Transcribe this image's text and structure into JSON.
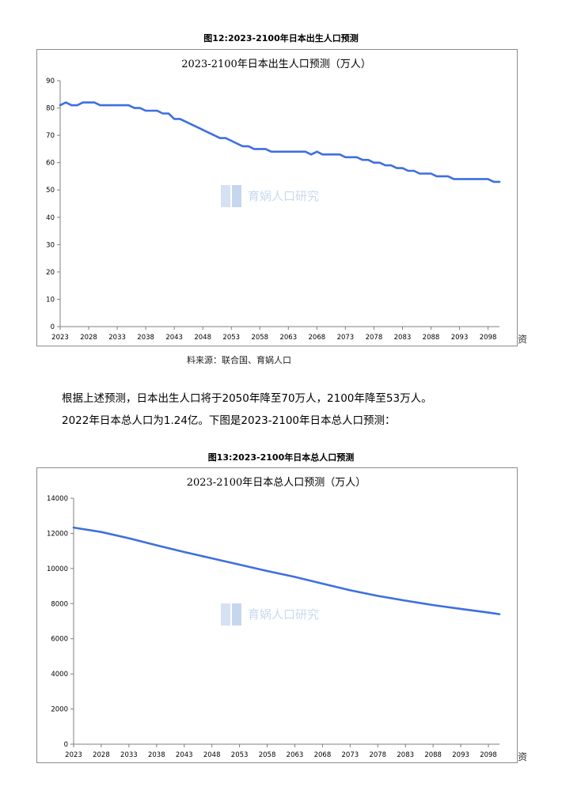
{
  "figure1": {
    "caption": "图12:2023-2100年日本出生人口预测",
    "side_char": "资",
    "source": "料来源：联合国、育娲人口"
  },
  "figure2": {
    "caption": "图13:2023-2100年日本总人口预测",
    "side_char": "资"
  },
  "paragraph": {
    "line1": "根据上述预测，日本出生人口将于2050年降至70万人，2100年降至53万人。",
    "line2": "2022年日本总人口为1.24亿。下图是2023-2100年日本总人口预测："
  },
  "watermark": {
    "text": "育娲人口研究"
  },
  "colors": {
    "line": "#3d6fe0",
    "axis": "#7f7f7f",
    "frame": "#8c8c8c"
  },
  "chart_data": [
    {
      "type": "line",
      "title": "2023-2100年日本出生人口预测（万人）",
      "xlabel": "",
      "ylabel": "",
      "xlim": [
        2023,
        2100
      ],
      "ylim": [
        0,
        90
      ],
      "y_ticks": [
        0,
        10,
        20,
        30,
        40,
        50,
        60,
        70,
        80,
        90
      ],
      "x_tick_labels": [
        "2023",
        "2028",
        "2033",
        "2038",
        "2043",
        "2048",
        "2053",
        "2058",
        "2063",
        "2068",
        "2073",
        "2078",
        "2083",
        "2088",
        "2093",
        "2098"
      ],
      "grid": false,
      "legend": "none",
      "x": [
        2023,
        2024,
        2025,
        2026,
        2027,
        2028,
        2029,
        2030,
        2031,
        2032,
        2033,
        2034,
        2035,
        2036,
        2037,
        2038,
        2039,
        2040,
        2041,
        2042,
        2043,
        2044,
        2045,
        2046,
        2047,
        2048,
        2049,
        2050,
        2051,
        2052,
        2053,
        2054,
        2055,
        2056,
        2057,
        2058,
        2059,
        2060,
        2061,
        2062,
        2063,
        2064,
        2065,
        2066,
        2067,
        2068,
        2069,
        2070,
        2071,
        2072,
        2073,
        2074,
        2075,
        2076,
        2077,
        2078,
        2079,
        2080,
        2081,
        2082,
        2083,
        2084,
        2085,
        2086,
        2087,
        2088,
        2089,
        2090,
        2091,
        2092,
        2093,
        2094,
        2095,
        2096,
        2097,
        2098,
        2099,
        2100
      ],
      "series": [
        {
          "values": [
            81,
            82,
            81,
            81,
            82,
            82,
            82,
            81,
            81,
            81,
            81,
            81,
            81,
            80,
            80,
            79,
            79,
            79,
            78,
            78,
            76,
            76,
            75,
            74,
            73,
            72,
            71,
            70,
            69,
            69,
            68,
            67,
            66,
            66,
            65,
            65,
            65,
            64,
            64,
            64,
            64,
            64,
            64,
            64,
            63,
            64,
            63,
            63,
            63,
            63,
            62,
            62,
            62,
            61,
            61,
            60,
            60,
            59,
            59,
            58,
            58,
            57,
            57,
            56,
            56,
            56,
            55,
            55,
            55,
            54,
            54,
            54,
            54,
            54,
            54,
            54,
            53,
            53
          ]
        }
      ]
    },
    {
      "type": "line",
      "title": "2023-2100年日本总人口预测（万人）",
      "xlabel": "",
      "ylabel": "",
      "xlim": [
        2023,
        2100
      ],
      "ylim": [
        0,
        14000
      ],
      "y_ticks": [
        0,
        2000,
        4000,
        6000,
        8000,
        10000,
        12000,
        14000
      ],
      "x_tick_labels": [
        "2023",
        "2028",
        "2033",
        "2038",
        "2043",
        "2048",
        "2053",
        "2058",
        "2063",
        "2068",
        "2073",
        "2078",
        "2083",
        "2088",
        "2093",
        "2098"
      ],
      "grid": false,
      "legend": "none",
      "x": [
        2023,
        2028,
        2033,
        2038,
        2043,
        2048,
        2053,
        2058,
        2063,
        2068,
        2073,
        2078,
        2083,
        2088,
        2093,
        2098,
        2100
      ],
      "series": [
        {
          "values": [
            12330,
            12080,
            11720,
            11320,
            10940,
            10580,
            10220,
            9860,
            9520,
            9140,
            8760,
            8440,
            8170,
            7920,
            7700,
            7490,
            7400
          ]
        }
      ]
    }
  ]
}
